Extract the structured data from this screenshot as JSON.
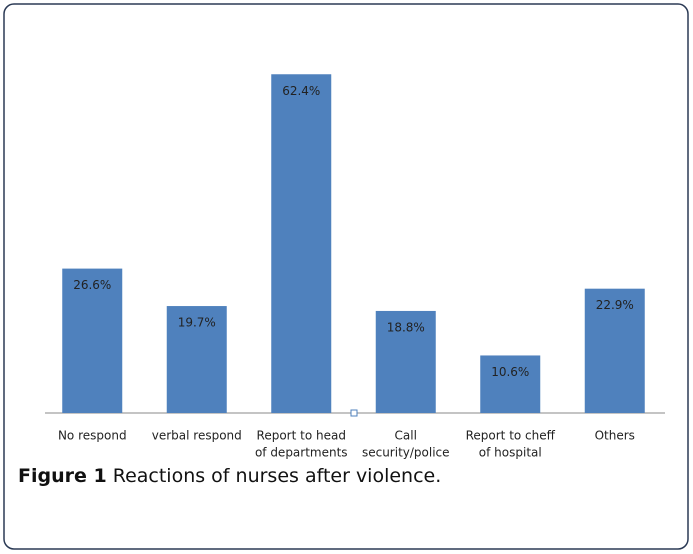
{
  "chart_data": {
    "type": "bar",
    "categories": [
      [
        "No respond"
      ],
      [
        "verbal respond"
      ],
      [
        "Report to head",
        "of departments"
      ],
      [
        "Call",
        "security/police"
      ],
      [
        "Report to cheff",
        "of hospital"
      ],
      [
        "Others"
      ]
    ],
    "values": [
      26.6,
      19.7,
      62.4,
      18.8,
      10.6,
      22.9
    ],
    "value_labels": [
      "26.6%",
      "19.7%",
      "62.4%",
      "18.8%",
      "10.6%",
      "22.9%"
    ],
    "color": "#4f81bd",
    "ylim": [
      0,
      70
    ],
    "caption": {
      "label": "Figure 1",
      "text": "Reactions of nurses after violence."
    }
  }
}
